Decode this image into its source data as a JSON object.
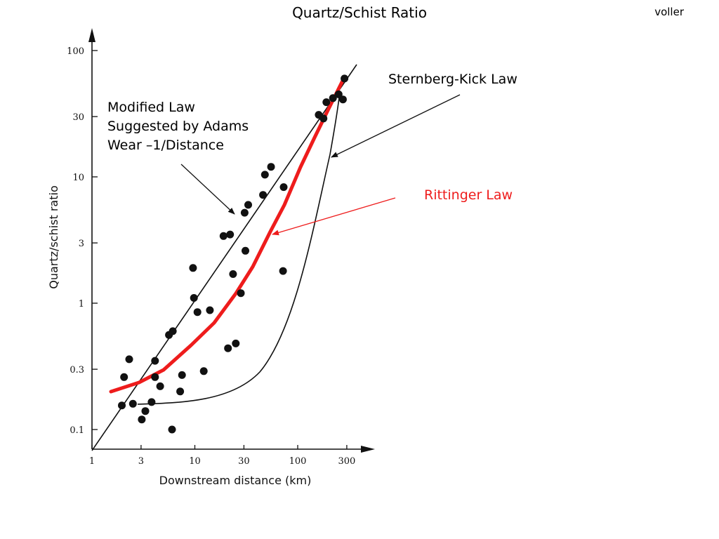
{
  "header": {
    "title": "Quartz/Schist Ratio",
    "author": "voller"
  },
  "chart_data": {
    "type": "scatter",
    "xlabel": "Downstream distance (km)",
    "ylabel": "Quartz/schist ratio",
    "xscale": "log",
    "yscale": "log",
    "xlim": [
      1,
      400
    ],
    "ylim": [
      0.08,
      140
    ],
    "xticks": [
      1,
      3,
      10,
      30,
      100,
      300
    ],
    "xtick_labels": [
      "1",
      "3",
      "10",
      "30",
      "100",
      "300"
    ],
    "yticks": [
      0.1,
      0.3,
      1,
      3,
      10,
      30,
      100
    ],
    "ytick_labels": [
      "0.1",
      "0.3",
      "1",
      "3",
      "10",
      "30",
      "100"
    ],
    "grid": false,
    "points": [
      {
        "x": 2.05,
        "y": 0.26
      },
      {
        "x": 1.95,
        "y": 0.155
      },
      {
        "x": 2.3,
        "y": 0.36
      },
      {
        "x": 2.5,
        "y": 0.16
      },
      {
        "x": 3.05,
        "y": 0.12
      },
      {
        "x": 3.3,
        "y": 0.14
      },
      {
        "x": 3.8,
        "y": 0.165
      },
      {
        "x": 4.1,
        "y": 0.35
      },
      {
        "x": 4.1,
        "y": 0.26
      },
      {
        "x": 4.6,
        "y": 0.22
      },
      {
        "x": 5.6,
        "y": 0.56
      },
      {
        "x": 6.1,
        "y": 0.6
      },
      {
        "x": 6.0,
        "y": 0.1
      },
      {
        "x": 7.2,
        "y": 0.2
      },
      {
        "x": 7.5,
        "y": 0.27
      },
      {
        "x": 9.6,
        "y": 1.9
      },
      {
        "x": 9.8,
        "y": 1.1
      },
      {
        "x": 10.6,
        "y": 0.85
      },
      {
        "x": 12.2,
        "y": 0.29
      },
      {
        "x": 14.0,
        "y": 0.88
      },
      {
        "x": 19.0,
        "y": 3.4
      },
      {
        "x": 22.0,
        "y": 3.5
      },
      {
        "x": 21.0,
        "y": 0.44
      },
      {
        "x": 23.5,
        "y": 1.7
      },
      {
        "x": 25.0,
        "y": 0.48
      },
      {
        "x": 28.0,
        "y": 1.2
      },
      {
        "x": 31.0,
        "y": 2.6
      },
      {
        "x": 30.5,
        "y": 5.2
      },
      {
        "x": 33.0,
        "y": 6.0
      },
      {
        "x": 46.0,
        "y": 7.2
      },
      {
        "x": 48.0,
        "y": 10.4
      },
      {
        "x": 55.0,
        "y": 12.0
      },
      {
        "x": 73.0,
        "y": 8.3
      },
      {
        "x": 72.0,
        "y": 1.8
      },
      {
        "x": 160.0,
        "y": 31.0
      },
      {
        "x": 178.0,
        "y": 29.0
      },
      {
        "x": 190.0,
        "y": 39.0
      },
      {
        "x": 220.0,
        "y": 42.0
      },
      {
        "x": 250.0,
        "y": 45.0
      },
      {
        "x": 275.0,
        "y": 41.0
      },
      {
        "x": 285.0,
        "y": 60.0
      }
    ],
    "annotations": {
      "modified_law": [
        "Modified Law",
        "Suggested by Adams",
        "Wear –1/Distance"
      ],
      "sternberg": "Sternberg-Kick Law",
      "rittinger": "Rittinger Law"
    },
    "colors": {
      "rittinger": "#ee1c1c",
      "ink": "#111111",
      "sternberg_text": "#000000"
    }
  }
}
